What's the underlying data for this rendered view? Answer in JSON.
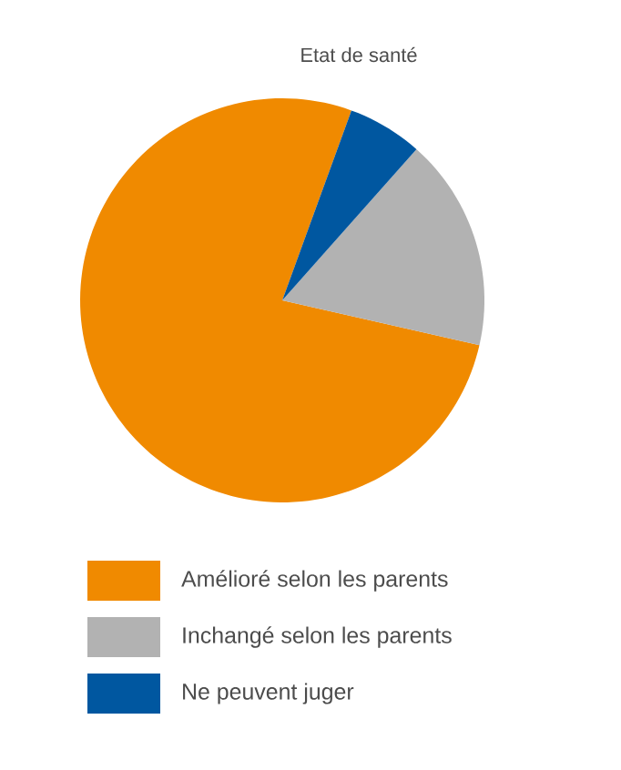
{
  "chart_data": {
    "type": "pie",
    "title": "Etat de santé",
    "categories": [
      "Amélioré selon les parents",
      "Inchangé selon les parents",
      "Ne peuvent juger"
    ],
    "values": [
      77,
      17,
      6
    ],
    "colors": [
      "#f08a00",
      "#b2b2b2",
      "#0057a0"
    ],
    "legend": "bottom"
  }
}
